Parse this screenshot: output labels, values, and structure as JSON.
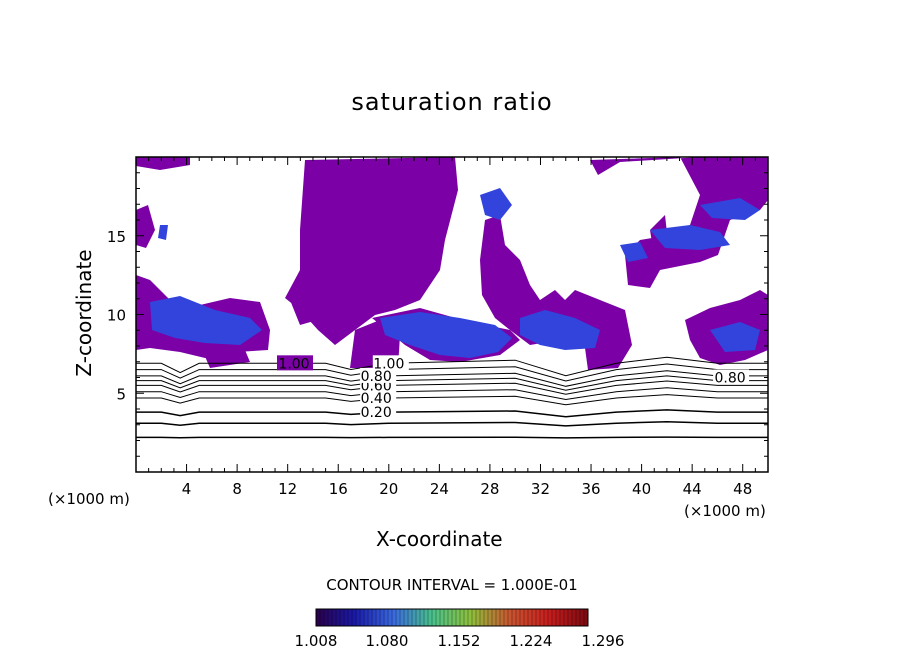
{
  "chart_data": {
    "type": "heatmap",
    "title": "saturation ratio",
    "xlabel": "X-coordinate",
    "ylabel": "Z-coordinate",
    "x_unit": "(×1000 m)",
    "y_unit": "(×1000 m)",
    "xlim": [
      0,
      50
    ],
    "ylim": [
      0,
      20
    ],
    "x_ticks": [
      4,
      8,
      12,
      16,
      20,
      24,
      28,
      32,
      36,
      40,
      44,
      48
    ],
    "y_ticks": [
      5,
      10,
      15
    ],
    "contour_interval_text": "CONTOUR INTERVAL = 1.000E-01",
    "contour_lines": [
      {
        "level": "0.20",
        "z": 3.8
      },
      {
        "level": "0.40",
        "z": 4.7
      },
      {
        "level": "0.60",
        "z": 5.5
      },
      {
        "level": "0.80",
        "z": 6.1
      },
      {
        "level": "1.00",
        "z": 6.9
      }
    ],
    "other_contour_labels": [
      "1.00",
      "0.80"
    ],
    "colorbar": {
      "ticks": [
        "1.008",
        "1.080",
        "1.152",
        "1.224",
        "1.296"
      ],
      "colors": [
        "#2a004a",
        "#1a1aa8",
        "#3a6adf",
        "#49c28a",
        "#8fbf3a",
        "#c9542f",
        "#c71d1d",
        "#7a0a10"
      ]
    },
    "colors": {
      "saturated_region": "#7b01a6",
      "high_saturation": "#3344dd"
    }
  }
}
